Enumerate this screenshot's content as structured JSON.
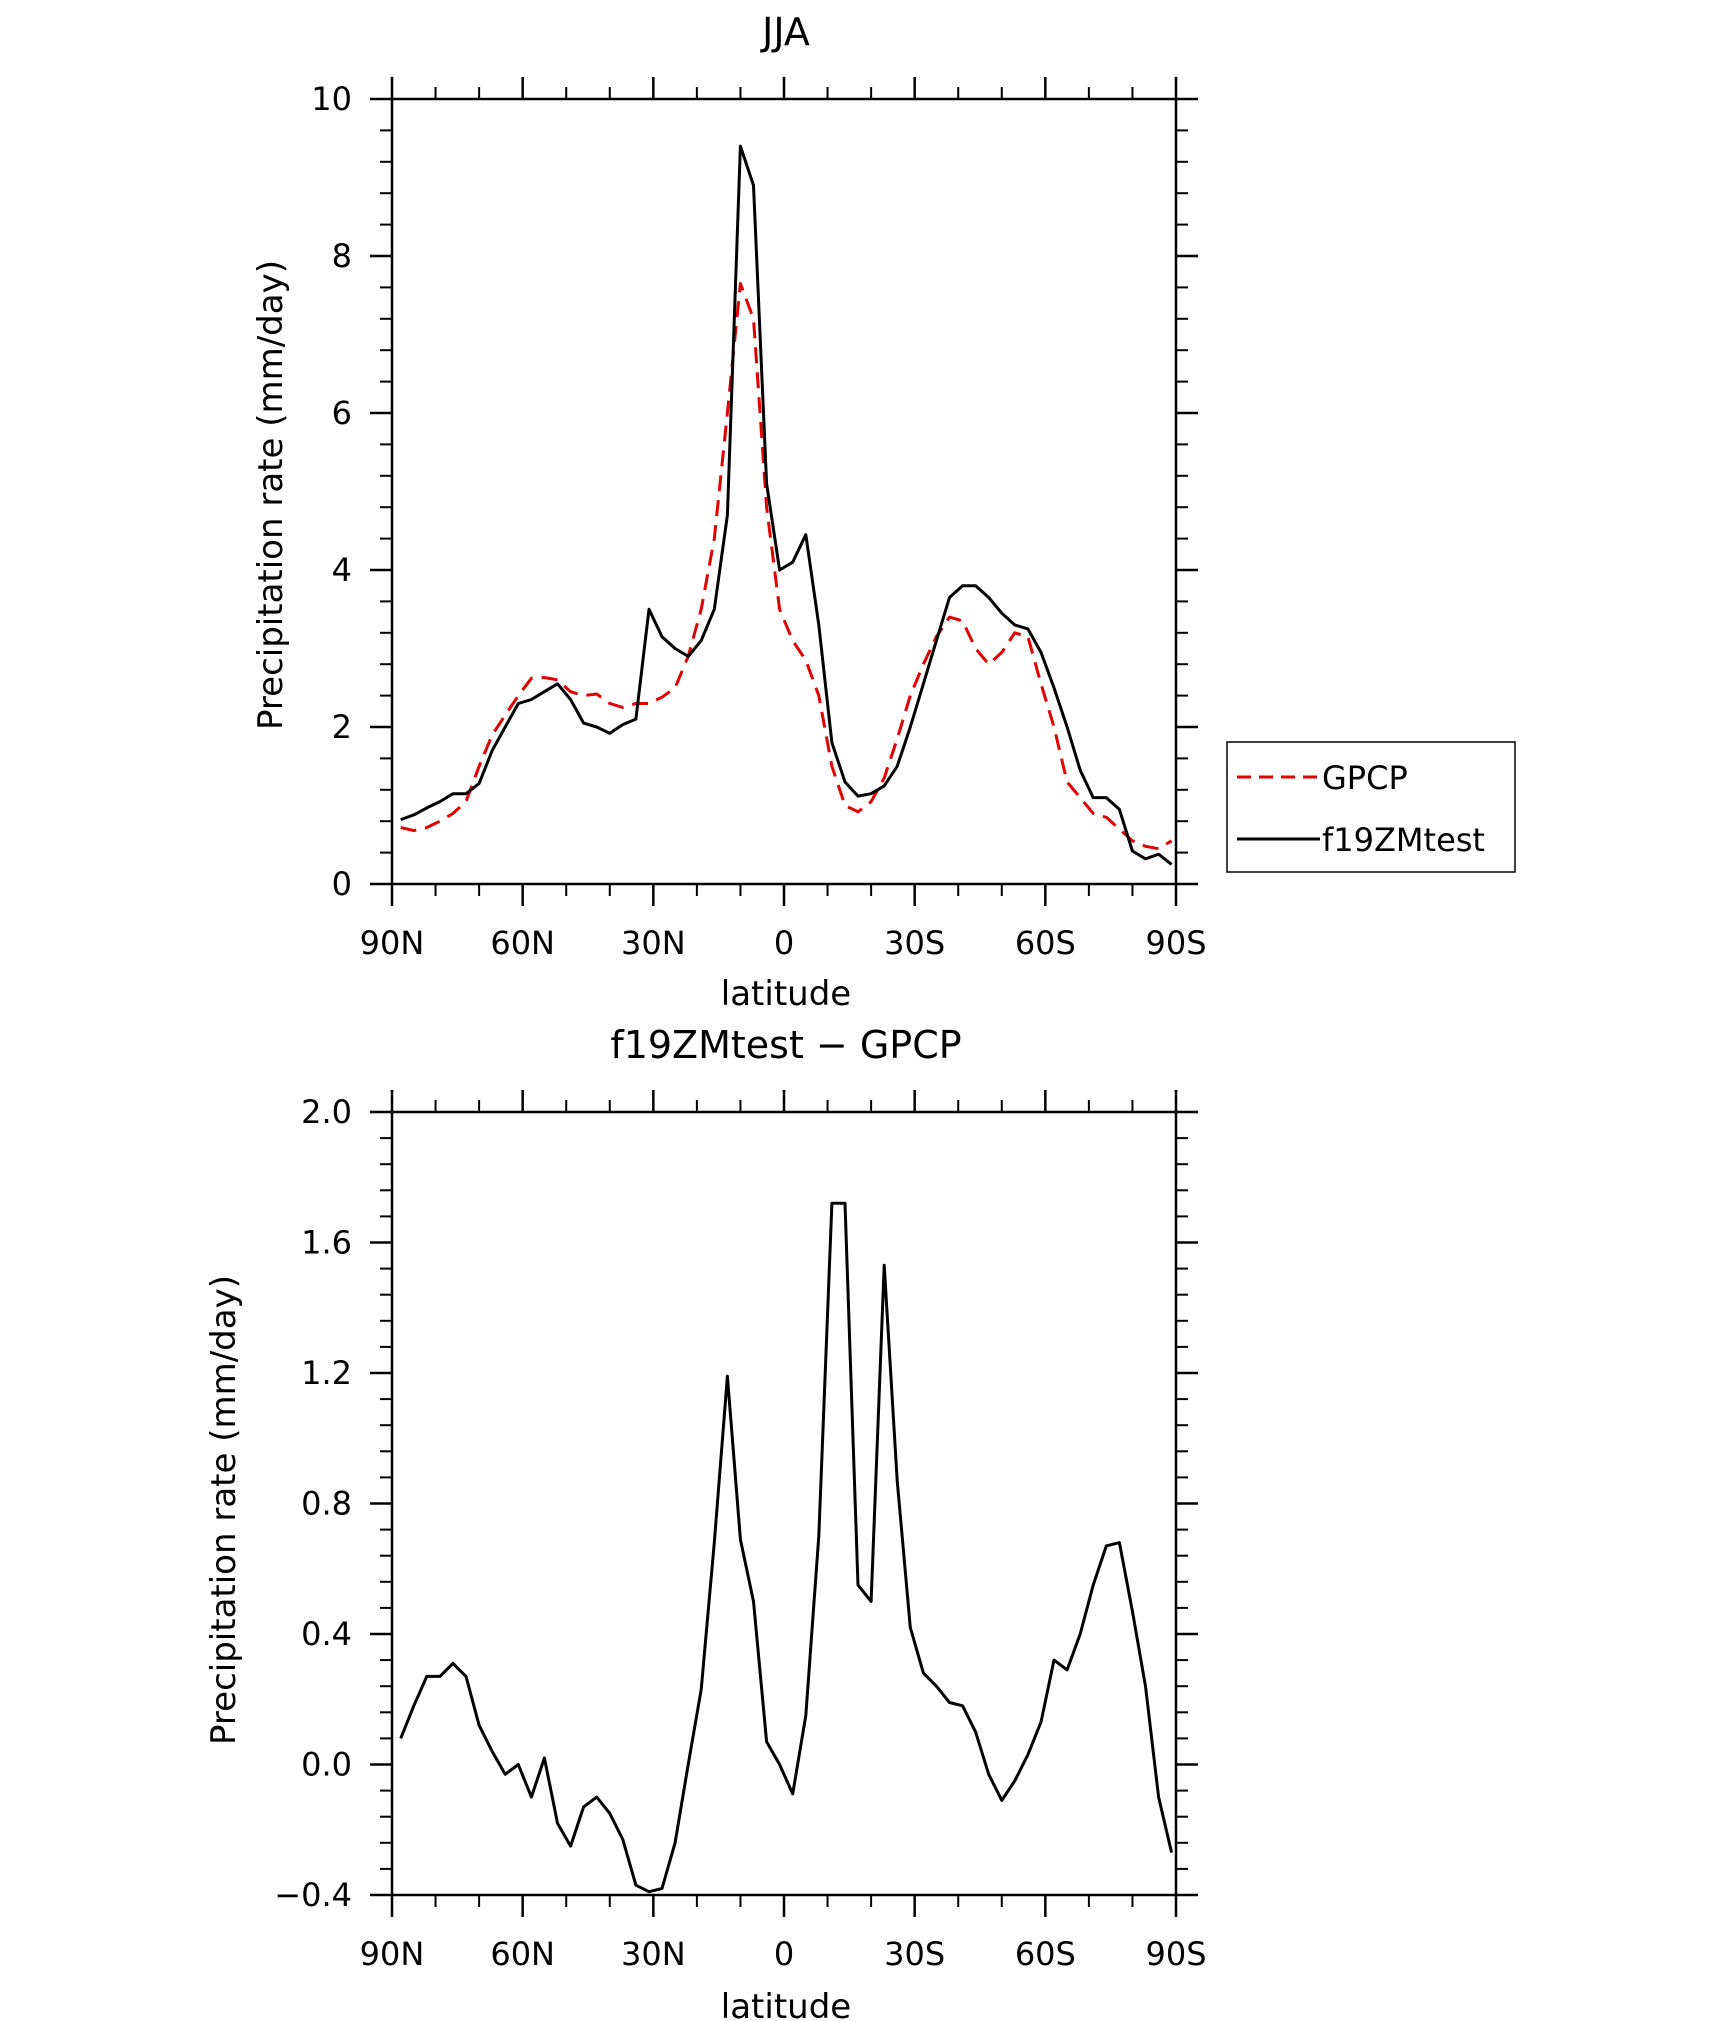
{
  "chart_data": [
    {
      "type": "line",
      "title": "JJA",
      "xlabel": "latitude",
      "ylabel": "Precipitation rate (mm/day)",
      "xlim": [
        90,
        -90
      ],
      "ylim": [
        0,
        10
      ],
      "x_tick_values": [
        90,
        60,
        30,
        0,
        -30,
        -60,
        -90
      ],
      "x_tick_labels": [
        "90N",
        "60N",
        "30N",
        "0",
        "30S",
        "60S",
        "90S"
      ],
      "y_tick_values": [
        0,
        2,
        4,
        6,
        8,
        10
      ],
      "y_tick_labels": [
        "0",
        "2",
        "4",
        "6",
        "8",
        "10"
      ],
      "legend": "right",
      "series": [
        {
          "name": "GPCP",
          "color": "#e00000",
          "style": "dashed",
          "x": [
            88,
            85,
            82,
            79,
            76,
            73,
            70,
            67,
            64,
            61,
            58,
            55,
            52,
            49,
            46,
            43,
            40,
            37,
            34,
            31,
            28,
            25,
            22,
            19,
            16,
            13,
            10,
            7,
            4,
            1,
            -2,
            -5,
            -8,
            -11,
            -14,
            -17,
            -20,
            -23,
            -26,
            -29,
            -32,
            -35,
            -38,
            -41,
            -44,
            -47,
            -50,
            -53,
            -56,
            -59,
            -62,
            -65,
            -68,
            -71,
            -74,
            -77,
            -80,
            -83,
            -86,
            -89
          ],
          "values": [
            0.72,
            0.68,
            0.72,
            0.8,
            0.9,
            1.05,
            1.5,
            1.9,
            2.15,
            2.4,
            2.62,
            2.63,
            2.6,
            2.45,
            2.4,
            2.42,
            2.3,
            2.25,
            2.3,
            2.3,
            2.38,
            2.5,
            2.9,
            3.5,
            4.4,
            6.0,
            7.65,
            7.2,
            4.8,
            3.5,
            3.1,
            2.85,
            2.4,
            1.5,
            1.0,
            0.92,
            1.05,
            1.35,
            1.85,
            2.4,
            2.8,
            3.15,
            3.4,
            3.35,
            3.0,
            2.8,
            2.95,
            3.2,
            3.15,
            2.55,
            2.0,
            1.3,
            1.1,
            0.9,
            0.85,
            0.7,
            0.55,
            0.48,
            0.45,
            0.55
          ]
        },
        {
          "name": "f19ZMtest",
          "color": "#000000",
          "style": "solid",
          "x": [
            88,
            85,
            82,
            79,
            76,
            73,
            70,
            67,
            64,
            61,
            58,
            55,
            52,
            49,
            46,
            43,
            40,
            37,
            34,
            31,
            28,
            25,
            22,
            19,
            16,
            13,
            10,
            7,
            4,
            1,
            -2,
            -5,
            -8,
            -11,
            -14,
            -17,
            -20,
            -23,
            -26,
            -29,
            -32,
            -35,
            -38,
            -41,
            -44,
            -47,
            -50,
            -53,
            -56,
            -59,
            -62,
            -65,
            -68,
            -71,
            -74,
            -77,
            -80,
            -83,
            -86,
            -89
          ],
          "values": [
            0.82,
            0.88,
            0.97,
            1.05,
            1.15,
            1.15,
            1.28,
            1.7,
            2.0,
            2.3,
            2.35,
            2.45,
            2.55,
            2.35,
            2.05,
            2.0,
            1.92,
            2.03,
            2.1,
            3.5,
            3.15,
            3.0,
            2.9,
            3.1,
            3.5,
            4.7,
            9.4,
            8.9,
            5.1,
            4.0,
            4.1,
            4.45,
            3.3,
            1.8,
            1.3,
            1.12,
            1.15,
            1.25,
            1.5,
            2.0,
            2.55,
            3.1,
            3.65,
            3.8,
            3.8,
            3.65,
            3.45,
            3.3,
            3.25,
            2.95,
            2.5,
            2.0,
            1.45,
            1.1,
            1.1,
            0.95,
            0.42,
            0.32,
            0.38,
            0.25
          ]
        }
      ]
    },
    {
      "type": "line",
      "title": "f19ZMtest − GPCP",
      "xlabel": "latitude",
      "ylabel": "Precipitation rate (mm/day)",
      "xlim": [
        90,
        -90
      ],
      "ylim": [
        -0.4,
        2.0
      ],
      "x_tick_values": [
        90,
        60,
        30,
        0,
        -30,
        -60,
        -90
      ],
      "x_tick_labels": [
        "90N",
        "60N",
        "30N",
        "0",
        "30S",
        "60S",
        "90S"
      ],
      "y_tick_values": [
        -0.4,
        0.0,
        0.4,
        0.8,
        1.2,
        1.6,
        2.0
      ],
      "y_tick_labels": [
        "−0.4",
        "0.0",
        "0.4",
        "0.8",
        "1.2",
        "1.6",
        "2.0"
      ],
      "series": [
        {
          "color": "#000000",
          "style": "solid",
          "x": [
            88,
            85,
            82,
            79,
            76,
            73,
            70,
            67,
            64,
            61,
            58,
            55,
            52,
            49,
            46,
            43,
            40,
            37,
            34,
            31,
            28,
            25,
            22,
            19,
            16,
            13,
            10,
            7,
            4,
            1,
            -2,
            -5,
            -8,
            -11,
            -14,
            -17,
            -20,
            -23,
            -26,
            -29,
            -32,
            -35,
            -38,
            -41,
            -44,
            -47,
            -50,
            -53,
            -56,
            -59,
            -62,
            -65,
            -68,
            -71,
            -74,
            -77,
            -80,
            -83,
            -86,
            -89
          ],
          "values": [
            0.08,
            0.18,
            0.27,
            0.27,
            0.31,
            0.27,
            0.12,
            0.04,
            -0.03,
            0.0,
            -0.1,
            0.02,
            -0.18,
            -0.25,
            -0.13,
            -0.1,
            -0.15,
            -0.23,
            -0.37,
            -0.39,
            -0.38,
            -0.24,
            0.0,
            0.23,
            0.68,
            1.19,
            0.69,
            0.5,
            0.07,
            0.0,
            -0.09,
            0.15,
            0.7,
            1.72,
            1.72,
            0.55,
            0.5,
            1.53,
            0.87,
            0.42,
            0.28,
            0.24,
            0.19,
            0.18,
            0.1,
            -0.03,
            -0.11,
            -0.05,
            0.03,
            0.13,
            0.32,
            0.29,
            0.4,
            0.55,
            0.67,
            0.68,
            0.47,
            0.24,
            -0.1,
            -0.27
          ]
        }
      ]
    }
  ]
}
